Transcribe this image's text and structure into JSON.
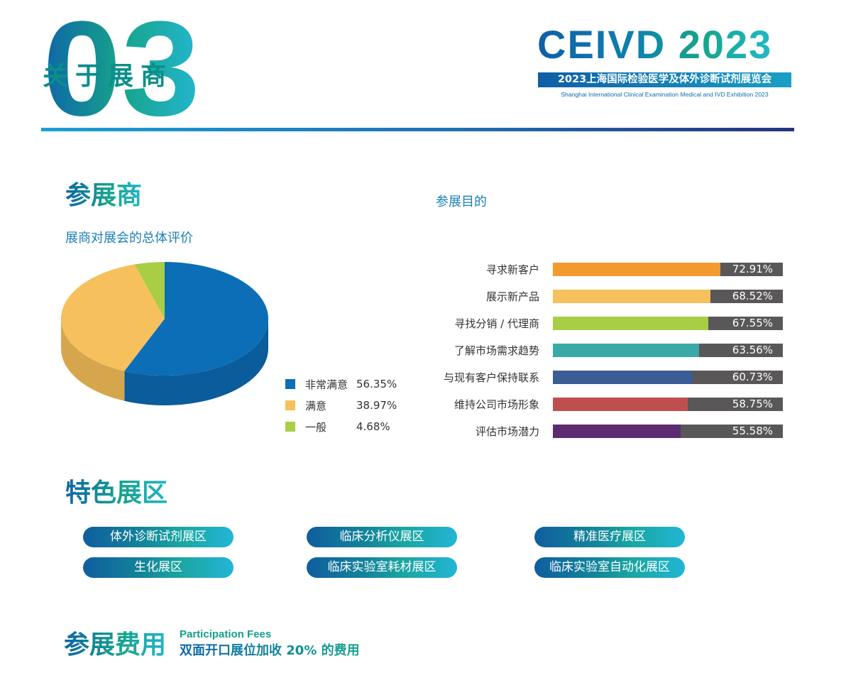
{
  "header": {
    "section_number": "03",
    "section_title": "关于展商",
    "brand": "CEIVD  2023",
    "brand_cn": "2023上海国际检验医学及体外诊断试剂展览会",
    "brand_en": "Shanghai International Clinical Examination Medical and IVD Exhibition 2023"
  },
  "exhibitors": {
    "title": "参展商",
    "rating_subtitle": "展商对展会的总体评价",
    "purpose_subtitle": "参展目的"
  },
  "chart_data": [
    {
      "type": "pie",
      "title": "展商对展会的总体评价",
      "categories": [
        "非常满意",
        "满意",
        "一般"
      ],
      "values": [
        56.35,
        38.97,
        4.68
      ],
      "value_labels": [
        "56.35%",
        "38.97%",
        "4.68%"
      ],
      "colors": [
        "#0b6eb6",
        "#f6c05c",
        "#a9cd45"
      ],
      "side_colors": [
        "#0a5c9a",
        "#d6a64d",
        "#8fb03a"
      ],
      "legend": "bottom-right"
    },
    {
      "type": "bar",
      "orientation": "horizontal",
      "title": "参展目的",
      "categories": [
        "寻求新客户",
        "展示新产品",
        "寻找分销 / 代理商",
        "了解市场需求趋势",
        "与现有客户保持联系",
        "维持公司市场形象",
        "评估市场潜力"
      ],
      "values": [
        72.91,
        68.52,
        67.55,
        63.56,
        60.73,
        58.75,
        55.58
      ],
      "value_labels": [
        "72.91%",
        "68.52%",
        "67.55%",
        "63.56%",
        "60.73%",
        "58.75%",
        "55.58%"
      ],
      "colors": [
        "#f39a2f",
        "#f6c05c",
        "#a9cd45",
        "#3aaaa8",
        "#3a5d96",
        "#bf4f4f",
        "#5c2b70"
      ],
      "xlim": [
        0,
        100
      ],
      "track_color": "#595757"
    }
  ],
  "zones": {
    "title": "特色展区",
    "items": [
      "体外诊断试剂展区",
      "临床分析仪展区",
      "精准医疗展区",
      "生化展区",
      "临床实验室耗材展区",
      "临床实验室自动化展区"
    ]
  },
  "fees": {
    "title": "参展费用",
    "title_en": "Participation Fees",
    "note": "双面开口展位加收 20% 的费用"
  }
}
